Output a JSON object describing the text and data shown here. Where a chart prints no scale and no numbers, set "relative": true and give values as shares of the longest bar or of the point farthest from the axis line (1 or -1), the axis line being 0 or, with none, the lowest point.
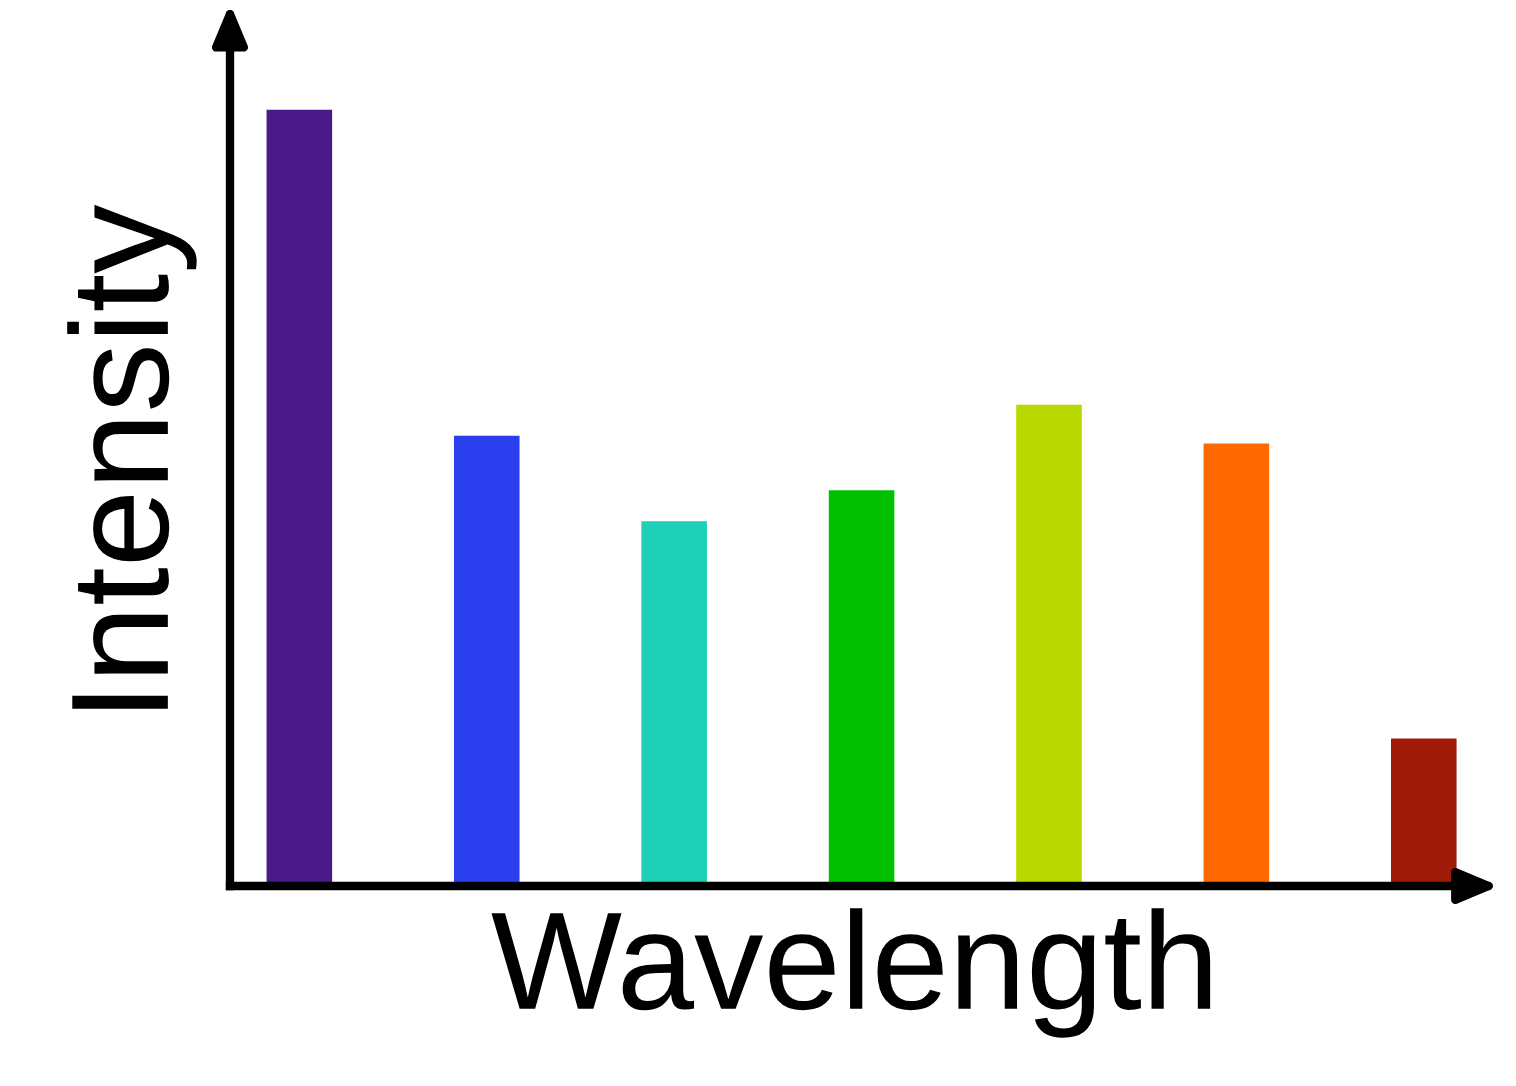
{
  "chart_data": {
    "type": "bar",
    "relative": true,
    "xlabel": "Wavelength",
    "ylabel": "Intensity",
    "categories": [
      null,
      null,
      null,
      null,
      null,
      null,
      null
    ],
    "values": [
      1,
      0.58,
      0.47,
      0.51,
      0.62,
      0.57,
      0.19
    ],
    "colors": [
      "#4a1a8a",
      "#2b3fef",
      "#1fd0b8",
      "#00c000",
      "#b8d800",
      "#ff6a00",
      "#a01a08"
    ],
    "grid": false,
    "legend": false,
    "tick_labels": false
  }
}
